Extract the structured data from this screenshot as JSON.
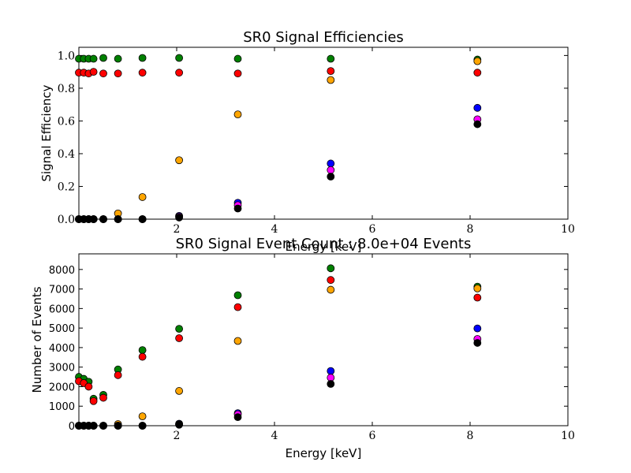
{
  "chart_data": [
    {
      "type": "scatter",
      "title": "SR0 Signal Efficiencies",
      "xlabel": "Energy [keV]",
      "ylabel": "Signal Efficiency",
      "xlim": [
        0,
        10
      ],
      "ylim": [
        0,
        1.05
      ],
      "xticks": [
        "2",
        "4",
        "6",
        "8",
        "10"
      ],
      "yticks": [
        "0.0",
        "0.2",
        "0.4",
        "0.6",
        "0.8",
        "1.0"
      ],
      "grid": false,
      "legend": "none",
      "x": [
        0.0,
        0.1,
        0.2,
        0.3,
        0.5,
        0.8,
        1.3,
        2.05,
        3.25,
        5.15,
        8.15
      ],
      "series": [
        {
          "color": "#008000",
          "values": [
            0.98,
            0.98,
            0.98,
            0.98,
            0.985,
            0.98,
            0.985,
            0.985,
            0.98,
            0.98,
            0.975
          ]
        },
        {
          "color": "#ff0000",
          "values": [
            0.895,
            0.895,
            0.89,
            0.9,
            0.89,
            0.89,
            0.895,
            0.895,
            0.89,
            0.905,
            0.895
          ]
        },
        {
          "color": "#ffa500",
          "values": [
            0.0,
            0.0,
            0.0,
            0.0,
            0.0,
            0.035,
            0.135,
            0.36,
            0.64,
            0.85,
            0.965
          ]
        },
        {
          "color": "#0000ff",
          "values": [
            0.0,
            0.0,
            0.0,
            0.0,
            0.0,
            0.0,
            0.0,
            0.02,
            0.1,
            0.34,
            0.68
          ]
        },
        {
          "color": "#ff00ff",
          "values": [
            0.0,
            0.0,
            0.0,
            0.0,
            0.0,
            0.0,
            0.0,
            0.015,
            0.085,
            0.3,
            0.61
          ]
        },
        {
          "color": "#000000",
          "values": [
            0.0,
            0.0,
            0.0,
            0.0,
            0.0,
            0.0,
            0.0,
            0.01,
            0.065,
            0.26,
            0.58
          ]
        }
      ]
    },
    {
      "type": "scatter",
      "title": "SR0 Signal Event Count : 8.0e+04 Events",
      "xlabel": "Energy [keV]",
      "ylabel": "Number of Events",
      "xlim": [
        0,
        10
      ],
      "ylim": [
        0,
        8800
      ],
      "xticks": [
        "2",
        "4",
        "6",
        "8",
        "10"
      ],
      "yticks": [
        "0",
        "1000",
        "2000",
        "3000",
        "4000",
        "5000",
        "6000",
        "7000",
        "8000"
      ],
      "grid": false,
      "legend": "none",
      "x": [
        0.0,
        0.1,
        0.2,
        0.3,
        0.5,
        0.8,
        1.3,
        2.05,
        3.25,
        5.15,
        8.15
      ],
      "series": [
        {
          "color": "#008000",
          "values": [
            2500,
            2400,
            2250,
            1380,
            1580,
            2880,
            3870,
            4960,
            6680,
            8060,
            7120
          ]
        },
        {
          "color": "#ff0000",
          "values": [
            2280,
            2180,
            2000,
            1260,
            1430,
            2590,
            3530,
            4480,
            6070,
            7460,
            6560
          ]
        },
        {
          "color": "#ffa500",
          "values": [
            0,
            0,
            0,
            0,
            0,
            80,
            480,
            1780,
            4340,
            6960,
            7030
          ]
        },
        {
          "color": "#0000ff",
          "values": [
            0,
            0,
            0,
            0,
            0,
            0,
            0,
            100,
            640,
            2800,
            4980
          ]
        },
        {
          "color": "#ff00ff",
          "values": [
            0,
            0,
            0,
            0,
            0,
            0,
            0,
            70,
            580,
            2460,
            4440
          ]
        },
        {
          "color": "#000000",
          "values": [
            0,
            0,
            0,
            0,
            0,
            0,
            0,
            50,
            440,
            2140,
            4240
          ]
        }
      ]
    }
  ]
}
